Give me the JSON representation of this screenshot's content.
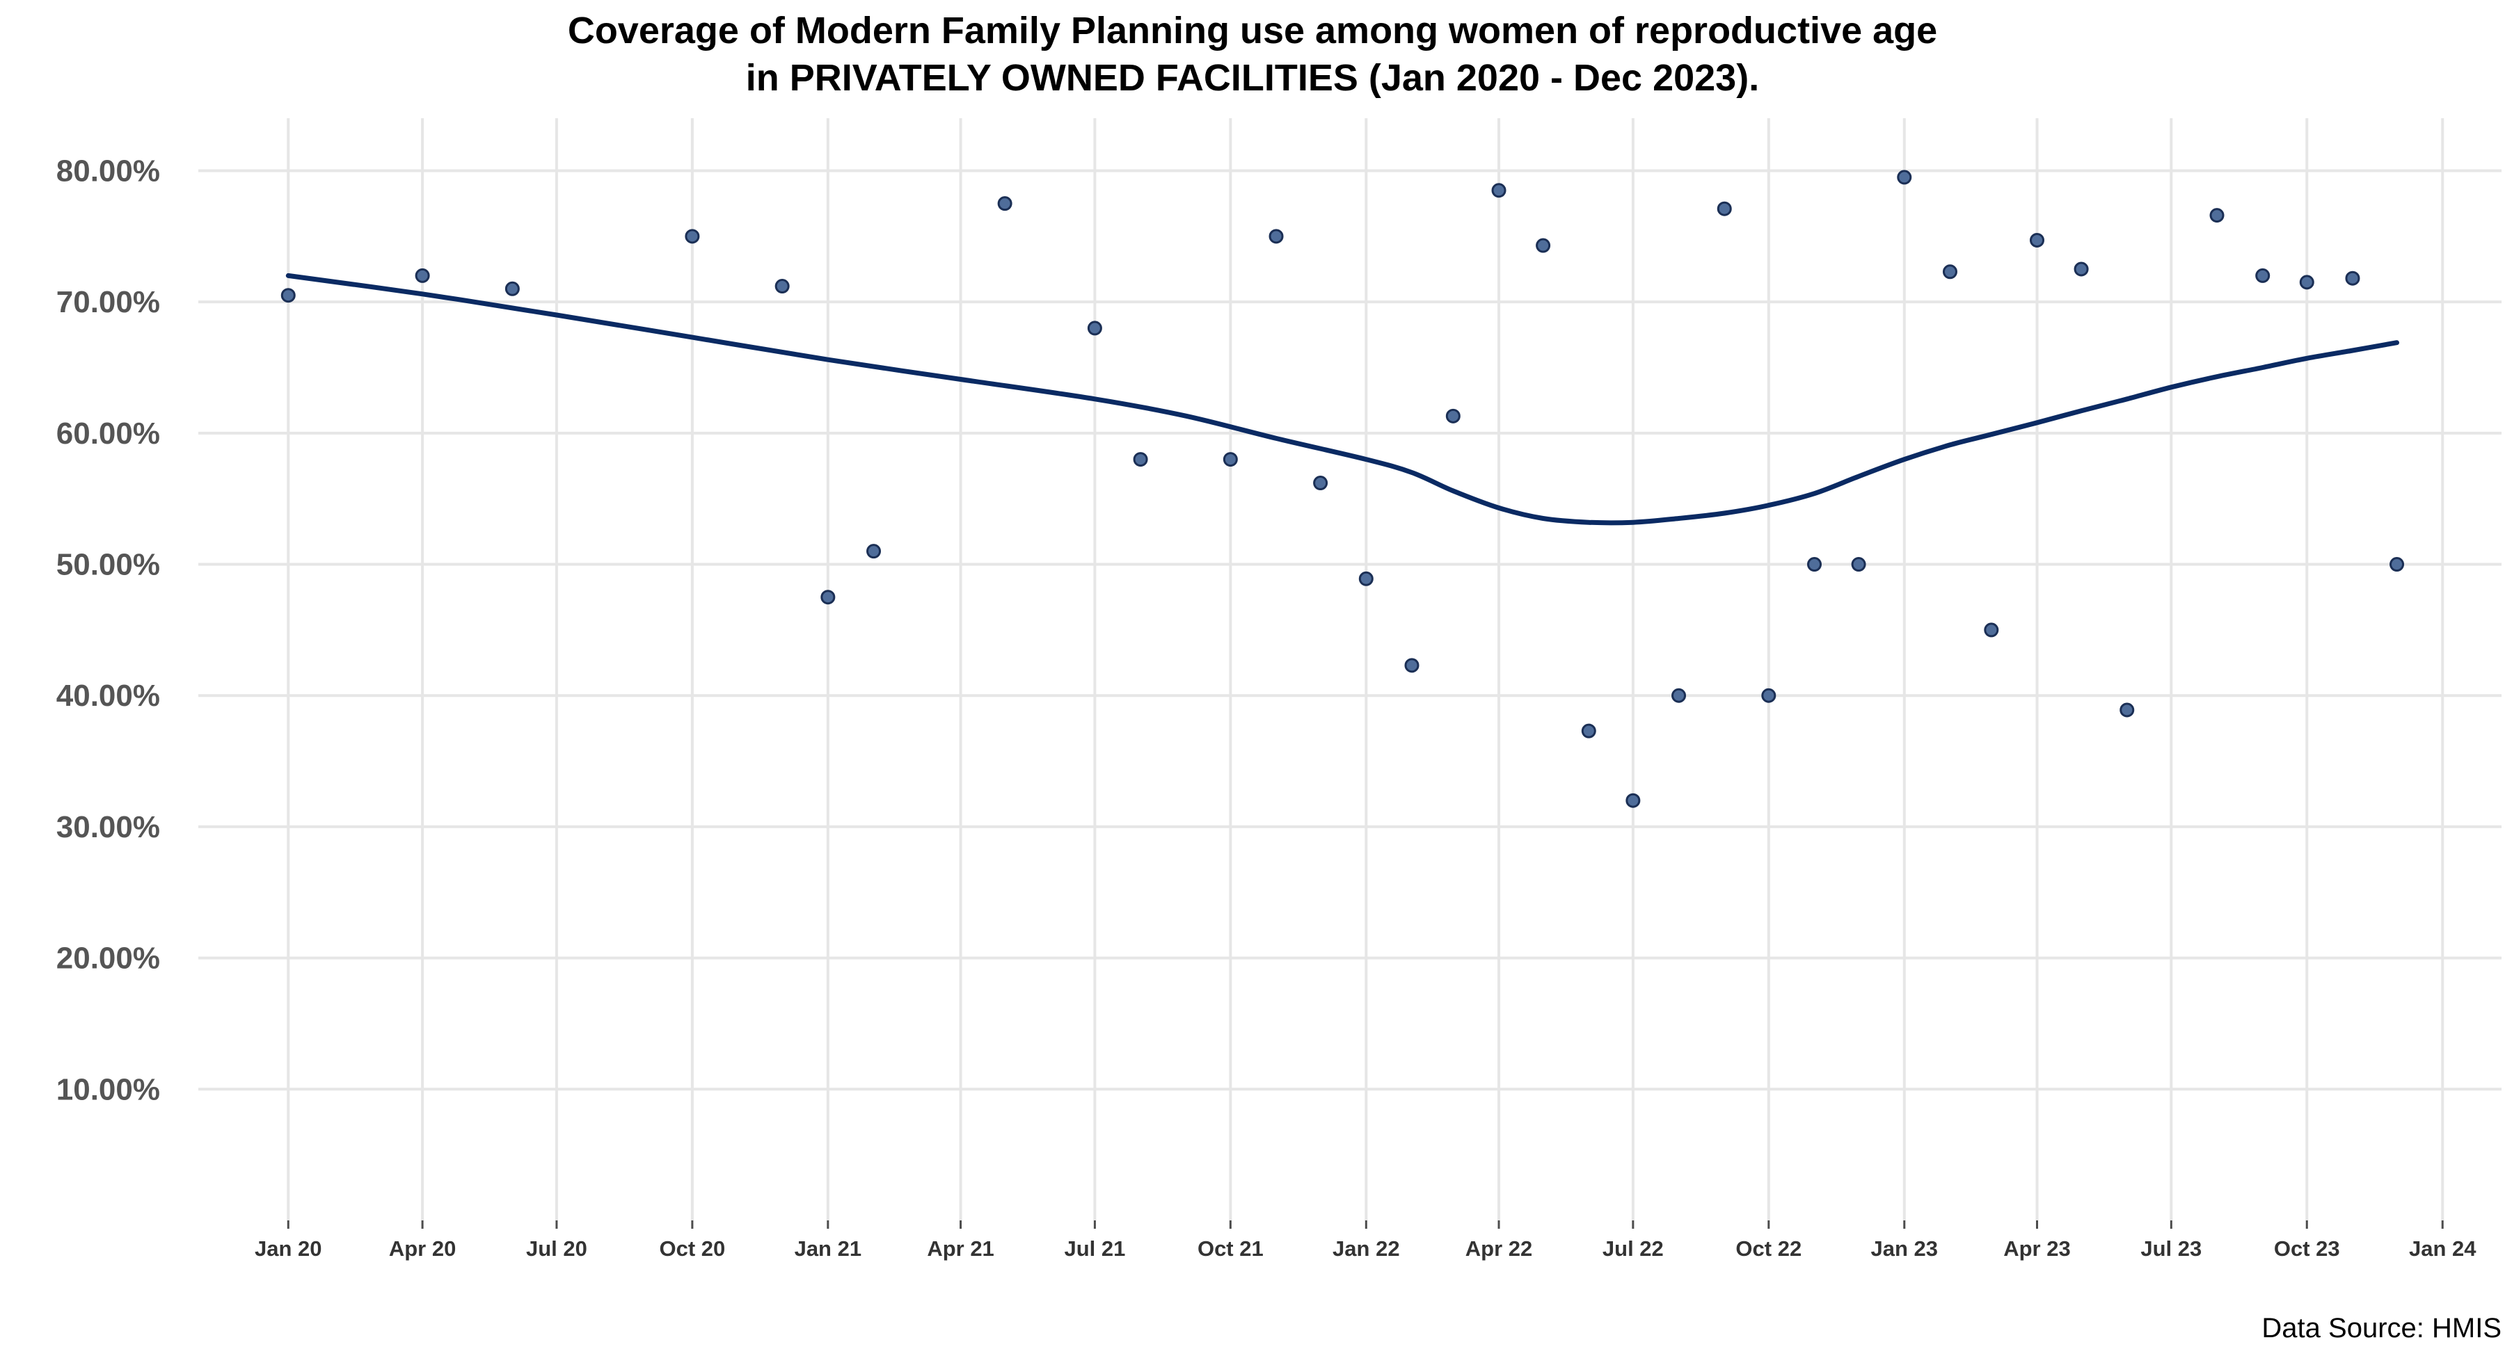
{
  "chart_data": {
    "type": "scatter",
    "title_line1": "Coverage of Modern Family Planning use among women of reproductive age",
    "title_line2": "in PRIVATELY OWNED FACILITIES (Jan 2020 - Dec 2023).",
    "caption": "Data Source: HMIS",
    "xlabel": "",
    "ylabel": "",
    "x_range": [
      "2019-11-01",
      "2024-02-10"
    ],
    "ylim": [
      0,
      84
    ],
    "y_ticks": [
      10,
      20,
      30,
      40,
      50,
      60,
      70,
      80
    ],
    "y_tick_labels": [
      "10.00%",
      "20.00%",
      "30.00%",
      "40.00%",
      "50.00%",
      "60.00%",
      "70.00%",
      "80.00%"
    ],
    "x_ticks": [
      "2020-01-01",
      "2020-04-01",
      "2020-07-01",
      "2020-10-01",
      "2021-01-01",
      "2021-04-01",
      "2021-07-01",
      "2021-10-01",
      "2022-01-01",
      "2022-04-01",
      "2022-07-01",
      "2022-10-01",
      "2023-01-01",
      "2023-04-01",
      "2023-07-01",
      "2023-10-01",
      "2024-01-01"
    ],
    "x_tick_labels": [
      "Jan 20",
      "Apr 20",
      "Jul 20",
      "Oct 20",
      "Jan 21",
      "Apr 21",
      "Jul 21",
      "Oct 21",
      "Jan 22",
      "Apr 22",
      "Jul 22",
      "Oct 22",
      "Jan 23",
      "Apr 23",
      "Jul 23",
      "Oct 23",
      "Jan 24"
    ],
    "grid": true,
    "legend": "none",
    "colors": {
      "points": "#4f6d9a",
      "point_outline": "#1b2f55",
      "trend_line": "#0a2a63",
      "grid": "#e6e6e6"
    },
    "points": [
      {
        "x": "2020-01-01",
        "y": 70.5
      },
      {
        "x": "2020-04-01",
        "y": 72.0
      },
      {
        "x": "2020-06-01",
        "y": 71.0
      },
      {
        "x": "2020-10-01",
        "y": 75.0
      },
      {
        "x": "2020-12-01",
        "y": 71.2
      },
      {
        "x": "2021-01-01",
        "y": 47.5
      },
      {
        "x": "2021-02-01",
        "y": 51.0
      },
      {
        "x": "2021-05-01",
        "y": 77.5
      },
      {
        "x": "2021-07-01",
        "y": 68.0
      },
      {
        "x": "2021-08-01",
        "y": 58.0
      },
      {
        "x": "2021-10-01",
        "y": 58.0
      },
      {
        "x": "2021-11-01",
        "y": 75.0
      },
      {
        "x": "2021-12-01",
        "y": 56.2
      },
      {
        "x": "2022-01-01",
        "y": 48.9
      },
      {
        "x": "2022-02-01",
        "y": 42.3
      },
      {
        "x": "2022-03-01",
        "y": 61.3
      },
      {
        "x": "2022-04-01",
        "y": 78.5
      },
      {
        "x": "2022-05-01",
        "y": 74.3
      },
      {
        "x": "2022-06-01",
        "y": 37.3
      },
      {
        "x": "2022-07-01",
        "y": 32.0
      },
      {
        "x": "2022-08-01",
        "y": 40.0
      },
      {
        "x": "2022-09-01",
        "y": 77.1
      },
      {
        "x": "2022-10-01",
        "y": 40.0
      },
      {
        "x": "2022-11-01",
        "y": 50.0
      },
      {
        "x": "2022-12-01",
        "y": 50.0
      },
      {
        "x": "2023-01-01",
        "y": 79.5
      },
      {
        "x": "2023-02-01",
        "y": 72.3
      },
      {
        "x": "2023-03-01",
        "y": 45.0
      },
      {
        "x": "2023-04-01",
        "y": 74.7
      },
      {
        "x": "2023-05-01",
        "y": 72.5
      },
      {
        "x": "2023-06-01",
        "y": 38.9
      },
      {
        "x": "2023-08-01",
        "y": 76.6
      },
      {
        "x": "2023-09-01",
        "y": 72.0
      },
      {
        "x": "2023-10-01",
        "y": 71.5
      },
      {
        "x": "2023-11-01",
        "y": 71.8
      },
      {
        "x": "2023-12-01",
        "y": 50.0
      }
    ],
    "trend": [
      {
        "x": "2020-01-01",
        "y": 72.0
      },
      {
        "x": "2020-04-01",
        "y": 70.6
      },
      {
        "x": "2020-07-01",
        "y": 69.0
      },
      {
        "x": "2020-10-01",
        "y": 67.3
      },
      {
        "x": "2021-01-01",
        "y": 65.6
      },
      {
        "x": "2021-04-01",
        "y": 64.1
      },
      {
        "x": "2021-07-01",
        "y": 62.6
      },
      {
        "x": "2021-09-01",
        "y": 61.3
      },
      {
        "x": "2021-11-01",
        "y": 59.6
      },
      {
        "x": "2022-01-01",
        "y": 58.0
      },
      {
        "x": "2022-02-01",
        "y": 57.0
      },
      {
        "x": "2022-03-01",
        "y": 55.6
      },
      {
        "x": "2022-04-01",
        "y": 54.3
      },
      {
        "x": "2022-05-01",
        "y": 53.5
      },
      {
        "x": "2022-06-01",
        "y": 53.2
      },
      {
        "x": "2022-07-01",
        "y": 53.2
      },
      {
        "x": "2022-08-01",
        "y": 53.5
      },
      {
        "x": "2022-09-01",
        "y": 53.9
      },
      {
        "x": "2022-10-01",
        "y": 54.5
      },
      {
        "x": "2022-11-01",
        "y": 55.4
      },
      {
        "x": "2022-12-01",
        "y": 56.7
      },
      {
        "x": "2023-01-01",
        "y": 58.0
      },
      {
        "x": "2023-02-01",
        "y": 59.1
      },
      {
        "x": "2023-03-01",
        "y": 59.9
      },
      {
        "x": "2023-04-01",
        "y": 60.8
      },
      {
        "x": "2023-05-01",
        "y": 61.7
      },
      {
        "x": "2023-06-01",
        "y": 62.6
      },
      {
        "x": "2023-07-01",
        "y": 63.5
      },
      {
        "x": "2023-08-01",
        "y": 64.3
      },
      {
        "x": "2023-09-01",
        "y": 65.0
      },
      {
        "x": "2023-10-01",
        "y": 65.7
      },
      {
        "x": "2023-11-01",
        "y": 66.3
      },
      {
        "x": "2023-12-01",
        "y": 66.9
      }
    ]
  }
}
